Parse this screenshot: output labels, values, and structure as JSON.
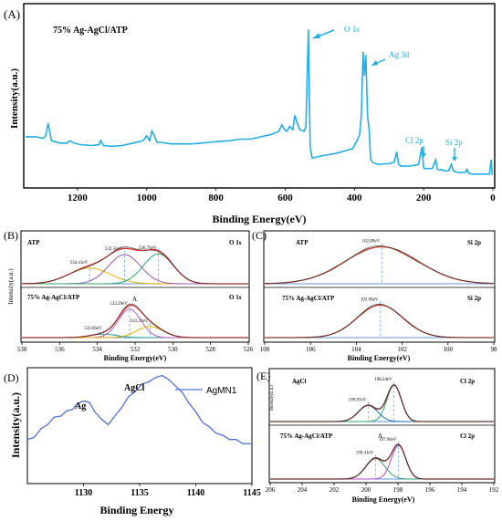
{
  "chart_data": [
    {
      "id": "A",
      "type": "line",
      "panel_label": "(A)",
      "sample_label": "75% Ag-AgCl/ATP",
      "xlabel": "Binding Energy(eV)",
      "ylabel": "Intensity(a.u.)",
      "xlim": [
        1350,
        0
      ],
      "ylim": [
        0,
        100
      ],
      "x_ticks": [
        "1200",
        "1000",
        "800",
        "600",
        "400",
        "200",
        "0"
      ],
      "x_tick_values": [
        1200,
        1000,
        800,
        600,
        400,
        200,
        0
      ],
      "series": [
        {
          "color": "#22aee6",
          "x": [
            1350,
            1320,
            1300,
            1292,
            1285,
            1275,
            1250,
            1230,
            1222,
            1210,
            1190,
            1160,
            1138,
            1133,
            1125,
            1100,
            1070,
            1040,
            1010,
            1000,
            992,
            985,
            978,
            970,
            960,
            930,
            900,
            870,
            840,
            820,
            790,
            760,
            730,
            700,
            670,
            640,
            618,
            610,
            602,
            595,
            587,
            578,
            572,
            565,
            558,
            545,
            540,
            533,
            528,
            522,
            505,
            480,
            455,
            430,
            405,
            398,
            392,
            385,
            380,
            375,
            371,
            367,
            362,
            357,
            353,
            345,
            330,
            315,
            300,
            285,
            278,
            272,
            265,
            240,
            215,
            205,
            200,
            197,
            190,
            175,
            165,
            160,
            154,
            148,
            140,
            128,
            120,
            114,
            108,
            100,
            90,
            80,
            75,
            70,
            60,
            40,
            20,
            10,
            5,
            2,
            0
          ],
          "y": [
            26.5,
            26.5,
            25.5,
            27,
            35,
            24,
            22.5,
            22.5,
            24,
            22.5,
            21.5,
            21,
            21.5,
            24,
            21,
            20.5,
            21,
            22.5,
            24,
            27,
            24,
            30,
            27,
            23,
            23,
            22,
            22,
            22,
            22.5,
            23,
            23.5,
            24,
            25,
            25,
            26.5,
            28,
            30,
            34,
            31,
            30,
            33,
            31,
            40,
            35,
            31,
            30,
            33,
            94,
            20,
            13,
            14,
            15,
            16,
            17.5,
            19,
            22,
            24,
            28,
            40,
            80,
            65,
            78,
            40,
            30,
            12,
            10,
            9,
            9.5,
            9.5,
            10.5,
            17,
            9,
            8,
            8,
            9,
            20,
            7,
            6.5,
            6.5,
            6.5,
            12,
            6,
            5.5,
            6,
            5,
            5,
            9,
            5,
            4.5,
            4,
            4,
            4,
            6,
            3.5,
            3,
            3,
            3,
            3,
            12,
            3,
            3
          ]
        }
      ],
      "annotations": [
        "O 1s",
        "Ag 3d",
        "Cl 2p",
        "Si 2p"
      ]
    },
    {
      "id": "B",
      "type": "line",
      "panel_label": "(B)",
      "xlabel": "Binding Energy(eV)",
      "ylabel": "Intensity(a.u.)",
      "xlim": [
        538,
        526
      ],
      "x_ticks": [
        "538",
        "536",
        "534",
        "532",
        "530",
        "528",
        "526"
      ],
      "x_tick_values": [
        538,
        536,
        534,
        532,
        530,
        528,
        526
      ],
      "subplots": [
        {
          "sample_label": "ATP",
          "orbital_label": "O 1s",
          "peaks": [
            {
              "label": "534.41eV",
              "center": 534.41,
              "height": 0.42,
              "width": 1.1,
              "color": "#e3b100"
            },
            {
              "label": "532.56eV",
              "center": 532.56,
              "height": 0.78,
              "width": 0.85,
              "color": "#9558b5"
            },
            {
              "label": "530.76eV",
              "center": 530.76,
              "height": 0.8,
              "width": 0.8,
              "color": "#2aa56a"
            }
          ],
          "envelope_color": "#e02b2b"
        },
        {
          "sample_label": "75% Ag-AgCl/ATP",
          "orbital_label": "O 1s",
          "peaks": [
            {
              "label": "533.66eV",
              "center": 533.66,
              "height": 0.1,
              "width": 0.7,
              "color": "#1b9c8e"
            },
            {
              "label": "532.29eV",
              "center": 532.29,
              "height": 0.82,
              "width": 0.6,
              "color": "#c25cc6"
            },
            {
              "label": "531.21eV",
              "center": 531.21,
              "height": 0.32,
              "width": 0.7,
              "color": "#e3b100"
            }
          ],
          "envelope_color": "#e02b2b",
          "annotation": "A"
        }
      ]
    },
    {
      "id": "C",
      "type": "line",
      "panel_label": "(C)",
      "xlabel": "Binding Energy(eV)",
      "ylabel": "Intensity(a.u.)",
      "xlim": [
        108,
        98
      ],
      "x_ticks": [
        "108",
        "106",
        "104",
        "102",
        "100",
        "98"
      ],
      "x_tick_values": [
        108,
        106,
        104,
        102,
        100,
        98
      ],
      "subplots": [
        {
          "sample_label": "ATP",
          "orbital_label": "Si 2p",
          "peaks": [
            {
              "label": "102.89eV",
              "center": 102.89,
              "height": 0.9,
              "width": 1.6,
              "color": "#2aa56a"
            }
          ],
          "envelope_color": "#c0392b"
        },
        {
          "sample_label": "75% Ag-AgCl/ATP",
          "orbital_label": "Si 2p",
          "peaks": [
            {
              "label": "102.96eV",
              "center": 102.96,
              "height": 0.85,
              "width": 1.0,
              "color": "#2aa56a"
            }
          ],
          "envelope_color": "#c0392b"
        }
      ]
    },
    {
      "id": "D",
      "type": "line",
      "panel_label": "(D)",
      "xlabel": "Binding Energy",
      "ylabel": "Intensity(a.u.)",
      "xlim": [
        1125,
        1145
      ],
      "ylim": [
        0,
        100
      ],
      "x_ticks": [
        "1130",
        "1135",
        "1140",
        "1145"
      ],
      "x_tick_values": [
        1130,
        1135,
        1140,
        1145
      ],
      "annotations": [
        "Ag",
        "AgCl"
      ],
      "series": [
        {
          "name": "AgMN1",
          "color": "#4f73d6",
          "x": [
            1125,
            1125.6,
            1126.2,
            1126.8,
            1127.4,
            1128,
            1128.5,
            1129,
            1129.5,
            1130,
            1130.5,
            1131,
            1131.6,
            1132.2,
            1132.8,
            1133.4,
            1134,
            1134.6,
            1135.2,
            1135.8,
            1136.4,
            1137,
            1137.6,
            1138.2,
            1138.8,
            1139.4,
            1140,
            1140.6,
            1141.2,
            1141.8,
            1142.4,
            1143,
            1143.6,
            1144.2,
            1145
          ],
          "y": [
            36,
            40,
            46,
            52,
            57,
            60,
            63,
            66,
            70,
            74,
            71,
            64,
            55,
            52,
            58,
            68,
            76,
            83,
            88,
            92,
            94,
            98,
            92,
            88,
            80,
            72,
            62,
            54,
            48,
            44,
            40,
            38,
            36,
            34,
            32
          ]
        }
      ]
    },
    {
      "id": "E",
      "type": "line",
      "panel_label": "(E)",
      "xlabel": "Binding Energy(eV)",
      "ylabel": "Intensity(a.u.)",
      "xlim": [
        206,
        192
      ],
      "x_ticks": [
        "206",
        "204",
        "202",
        "200",
        "198",
        "196",
        "194",
        "192"
      ],
      "x_tick_values": [
        206,
        204,
        202,
        200,
        198,
        196,
        194,
        192
      ],
      "subplots": [
        {
          "sample_label": "AgCl",
          "orbital_label": "Cl 2p",
          "peaks": [
            {
              "label": "199.87eV",
              "center": 199.87,
              "height": 0.42,
              "width": 0.6,
              "color": "#1e6fb8"
            },
            {
              "label": "198.24eV",
              "center": 198.24,
              "height": 0.95,
              "width": 0.45,
              "color": "#2aa56a"
            }
          ],
          "envelope_color": "#8b2f2f"
        },
        {
          "sample_label": "75% Ag-AgCl/ATP",
          "orbital_label": "Cl 2p",
          "peaks": [
            {
              "label": "199.41eV",
              "center": 199.41,
              "height": 0.55,
              "width": 0.6,
              "color": "#2aa56a"
            },
            {
              "label": "197.96eV",
              "center": 197.96,
              "height": 0.9,
              "width": 0.45,
              "color": "#b04cc8"
            }
          ],
          "envelope_color": "#8b2f2f",
          "annotation": "A"
        }
      ]
    }
  ]
}
